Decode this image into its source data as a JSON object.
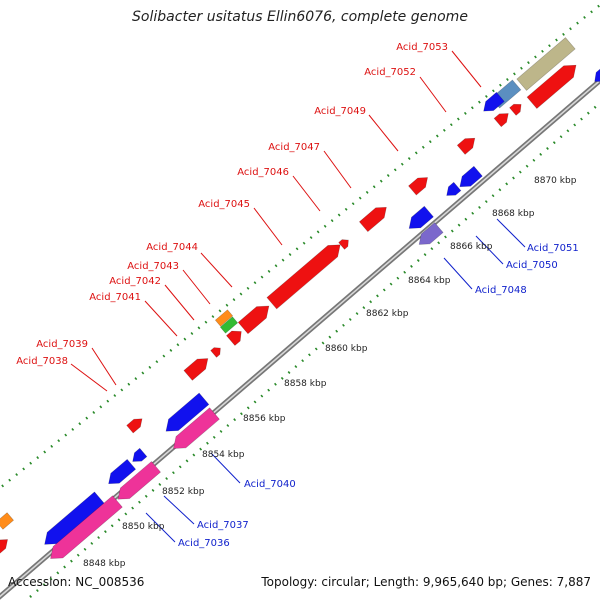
{
  "title": "Solibacter usitatus Ellin6076, complete genome",
  "footer": {
    "accession": "Accession: NC_008536",
    "topology": "Topology: circular; Length: 9,965,640 bp; Genes: 7,887"
  },
  "colors": {
    "forward_label": "#dd1111",
    "reverse_label": "#1122cc",
    "backbone": "#9a9a9a",
    "dots": "#2a8a2a",
    "gene_red": "#ee1111",
    "gene_blue": "#1111ee",
    "gene_pink": "#ee3399",
    "gene_tan": "#bdb68a",
    "gene_steelblue": "#5b8fc0",
    "gene_orange": "#ff8c1a",
    "gene_green": "#33bb33",
    "gene_lavender": "#7b68cc"
  },
  "ticks": [
    "8848 kbp",
    "8850 kbp",
    "8852 kbp",
    "8854 kbp",
    "8856 kbp",
    "8858 kbp",
    "8860 kbp",
    "8862 kbp",
    "8864 kbp",
    "8866 kbp",
    "8868 kbp",
    "8870 kbp"
  ],
  "forward_labels": [
    "Acid_7038",
    "Acid_7039",
    "Acid_7041",
    "Acid_7042",
    "Acid_7043",
    "Acid_7044",
    "Acid_7045",
    "Acid_7046",
    "Acid_7047",
    "Acid_7049",
    "Acid_7052",
    "Acid_7053"
  ],
  "reverse_labels": [
    "Acid_7036",
    "Acid_7037",
    "Acid_7040",
    "Acid_7048",
    "Acid_7050",
    "Acid_7051"
  ]
}
